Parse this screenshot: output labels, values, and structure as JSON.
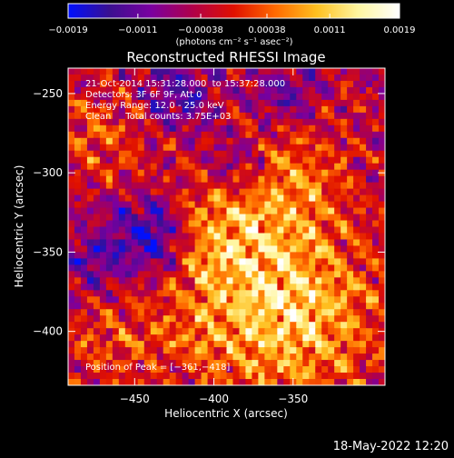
{
  "chart_data": {
    "type": "heatmap",
    "title": "Reconstructed RHESSI Image",
    "xlabel": "Heliocentric X (arcsec)",
    "ylabel": "Heliocentric Y (arcsec)",
    "xlim": [
      -492,
      -292
    ],
    "ylim": [
      -434,
      -234
    ],
    "x_ticks": [
      -450,
      -400,
      -350
    ],
    "x_tick_labels": [
      "−450",
      "−400",
      "−350"
    ],
    "y_ticks": [
      -250,
      -300,
      -350,
      -400
    ],
    "y_tick_labels": [
      "−250",
      "−300",
      "−350",
      "−400"
    ],
    "grid": false,
    "colorbar": {
      "orientation": "horizontal",
      "placement": "top",
      "min": -0.0019,
      "max": 0.0019,
      "ticks": [
        -0.0019,
        -0.0011,
        -0.00038,
        0.00038,
        0.0011,
        0.0019
      ],
      "tick_labels": [
        "−0.0019",
        "−0.0011",
        "−0.00038",
        "0.00038",
        "0.0011",
        "0.0019"
      ],
      "unit_label": "(photons cm⁻² s⁻¹ asec⁻²)",
      "colormap": [
        "#0010ff",
        "#3a1090",
        "#7a00a0",
        "#b0004a",
        "#e01000",
        "#ff6a00",
        "#ffc020",
        "#fff6a0",
        "#ffffff"
      ]
    },
    "annotations": [
      "21-Oct-2014 15:31:28.000  to 15:37:28.000",
      "Detectors: 3F 6F 9F, Att 0",
      "Energy Range: 12.0 - 25.0 keV",
      "Clean     Total counts: 3.75E+03"
    ],
    "peak_label": "Position of Peak = [−361,−418]",
    "peak": [
      -361,
      -418
    ],
    "pixel_size_arcsec": 4,
    "features": [
      {
        "kind": "hot",
        "x": -353,
        "y": -390,
        "r": 55,
        "amp": 1.0
      },
      {
        "kind": "hot",
        "x": -360,
        "y": -300,
        "r": 45,
        "amp": 0.6
      },
      {
        "kind": "hot",
        "x": -398,
        "y": -340,
        "r": 35,
        "amp": 0.5
      },
      {
        "kind": "hot",
        "x": -472,
        "y": -275,
        "r": 30,
        "amp": 0.45
      },
      {
        "kind": "hot",
        "x": -420,
        "y": -395,
        "r": 30,
        "amp": 0.3
      },
      {
        "kind": "hot",
        "x": -470,
        "y": -410,
        "r": 30,
        "amp": 0.35
      },
      {
        "kind": "cold",
        "x": -440,
        "y": -340,
        "r": 22,
        "amp": 0.8
      },
      {
        "kind": "cold",
        "x": -385,
        "y": -295,
        "r": 22,
        "amp": 0.55
      },
      {
        "kind": "cold",
        "x": -355,
        "y": -255,
        "r": 22,
        "amp": 0.5
      },
      {
        "kind": "cold",
        "x": -420,
        "y": -250,
        "r": 22,
        "amp": 0.5
      },
      {
        "kind": "cold",
        "x": -475,
        "y": -355,
        "r": 18,
        "amp": 0.4
      }
    ]
  },
  "footer_timestamp": "18-May-2022 12:20",
  "colors": {
    "background": "#000000",
    "text": "#ffffff",
    "axes": "#ffffff"
  }
}
